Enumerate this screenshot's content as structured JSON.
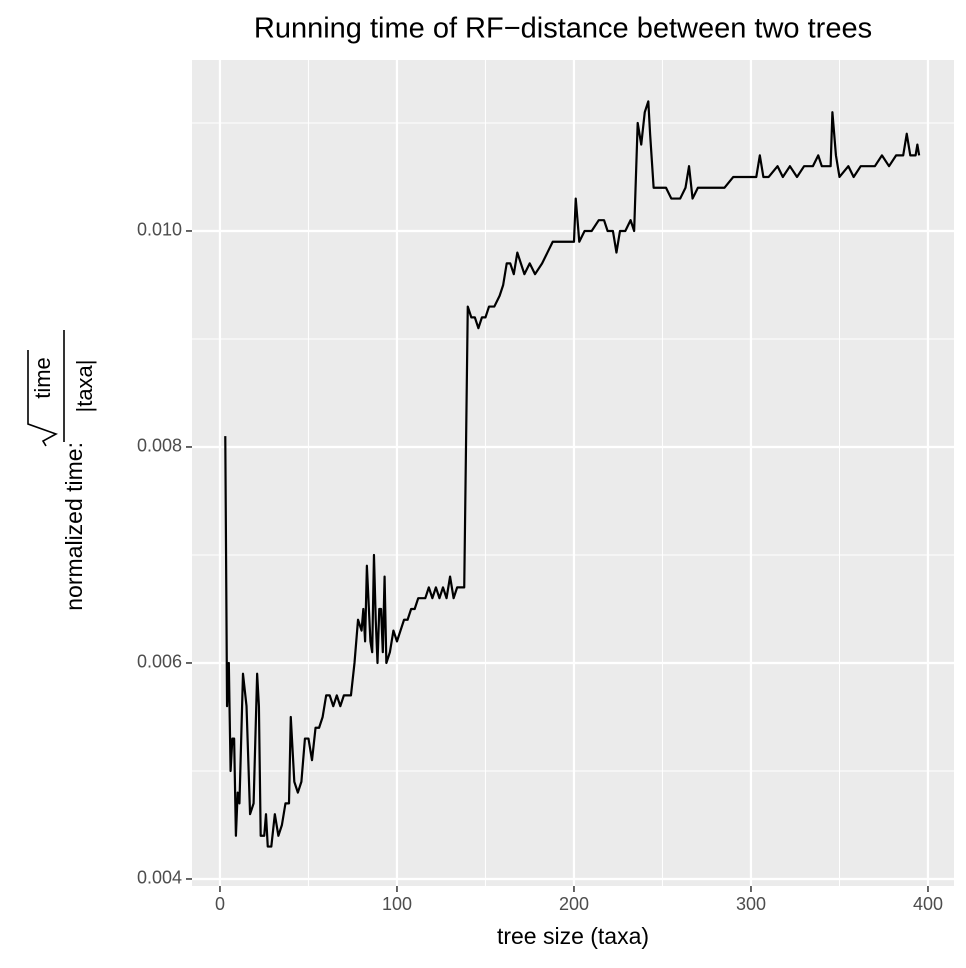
{
  "chart_data": {
    "type": "line",
    "title": "Running time of RF−distance between two trees",
    "xlabel": "tree size (taxa)",
    "ylabel": "normalized time:",
    "ylabel_numerator": "time",
    "ylabel_denominator": "|taxa|",
    "xlim": [
      -15.8,
      414.7
    ],
    "ylim": [
      0.003935,
      0.011583
    ],
    "xticks": [
      0,
      100,
      200,
      300,
      400
    ],
    "yticks": [
      0.004,
      0.006,
      0.008,
      {
        "value": 0.01,
        "label": "0.010"
      }
    ],
    "grid": true,
    "color": "#000000",
    "x": [
      3,
      4,
      5,
      6,
      7,
      8,
      9,
      10,
      11,
      13,
      15,
      17,
      19,
      21,
      22,
      23,
      25,
      26,
      27,
      29,
      31,
      33,
      35,
      37,
      39,
      40,
      42,
      44,
      46,
      48,
      50,
      52,
      54,
      56,
      58,
      60,
      62,
      64,
      66,
      68,
      70,
      72,
      74,
      76,
      77,
      78,
      80,
      81,
      82,
      83,
      85,
      86,
      87,
      88,
      89,
      90,
      91,
      92,
      93,
      94,
      96,
      98,
      100,
      102,
      104,
      106,
      108,
      110,
      112,
      114,
      116,
      118,
      120,
      122,
      124,
      126,
      128,
      130,
      132,
      134,
      136,
      138,
      140,
      142,
      144,
      146,
      148,
      150,
      152,
      155,
      158,
      160,
      162,
      164,
      166,
      168,
      170,
      172,
      175,
      178,
      182,
      185,
      188,
      192,
      196,
      200,
      201,
      203,
      206,
      210,
      214,
      217,
      219,
      222,
      224,
      226,
      229,
      232,
      234,
      236,
      238,
      240,
      242,
      243,
      245,
      248,
      252,
      255,
      258,
      260,
      263,
      265,
      267,
      270,
      275,
      280,
      285,
      290,
      295,
      300,
      303,
      305,
      307,
      310,
      315,
      318,
      322,
      326,
      330,
      335,
      338,
      340,
      342,
      345,
      346,
      348,
      350,
      355,
      358,
      362,
      366,
      370,
      374,
      378,
      382,
      386,
      388,
      390,
      393,
      394,
      395
    ],
    "values": [
      0.0081,
      0.0056,
      0.006,
      0.005,
      0.0053,
      0.0053,
      0.0044,
      0.0048,
      0.0047,
      0.0059,
      0.0056,
      0.0046,
      0.0047,
      0.0059,
      0.0056,
      0.0044,
      0.0044,
      0.0046,
      0.0043,
      0.0043,
      0.0046,
      0.0044,
      0.0045,
      0.0047,
      0.0047,
      0.0055,
      0.0049,
      0.0048,
      0.0049,
      0.0053,
      0.0053,
      0.0051,
      0.0054,
      0.0054,
      0.0055,
      0.0057,
      0.0057,
      0.0056,
      0.0057,
      0.0056,
      0.0057,
      0.0057,
      0.0057,
      0.006,
      0.0062,
      0.0064,
      0.0063,
      0.0065,
      0.0062,
      0.0069,
      0.0062,
      0.0061,
      0.007,
      0.0064,
      0.006,
      0.0065,
      0.0065,
      0.0061,
      0.0068,
      0.006,
      0.0061,
      0.0063,
      0.0062,
      0.0063,
      0.0064,
      0.0064,
      0.0065,
      0.0065,
      0.0066,
      0.0066,
      0.0066,
      0.0067,
      0.0066,
      0.0067,
      0.0066,
      0.0067,
      0.0066,
      0.0068,
      0.0066,
      0.0067,
      0.0067,
      0.0067,
      0.0093,
      0.0092,
      0.0092,
      0.0091,
      0.0092,
      0.0092,
      0.0093,
      0.0093,
      0.0094,
      0.0095,
      0.0097,
      0.0097,
      0.0096,
      0.0098,
      0.0097,
      0.0096,
      0.0097,
      0.0096,
      0.0097,
      0.0098,
      0.0099,
      0.0099,
      0.0099,
      0.0099,
      0.0103,
      0.0099,
      0.01,
      0.01,
      0.0101,
      0.0101,
      0.01,
      0.01,
      0.0098,
      0.01,
      0.01,
      0.0101,
      0.01,
      0.011,
      0.0108,
      0.0111,
      0.0112,
      0.0109,
      0.0104,
      0.0104,
      0.0104,
      0.0103,
      0.0103,
      0.0103,
      0.0104,
      0.0106,
      0.0103,
      0.0104,
      0.0104,
      0.0104,
      0.0104,
      0.0105,
      0.0105,
      0.0105,
      0.0105,
      0.0107,
      0.0105,
      0.0105,
      0.0106,
      0.0105,
      0.0106,
      0.0105,
      0.0106,
      0.0106,
      0.0107,
      0.0106,
      0.0106,
      0.0106,
      0.0111,
      0.0107,
      0.0105,
      0.0106,
      0.0105,
      0.0106,
      0.0106,
      0.0106,
      0.0107,
      0.0106,
      0.0107,
      0.0107,
      0.0109,
      0.0107,
      0.0107,
      0.0108,
      0.0107
    ]
  }
}
